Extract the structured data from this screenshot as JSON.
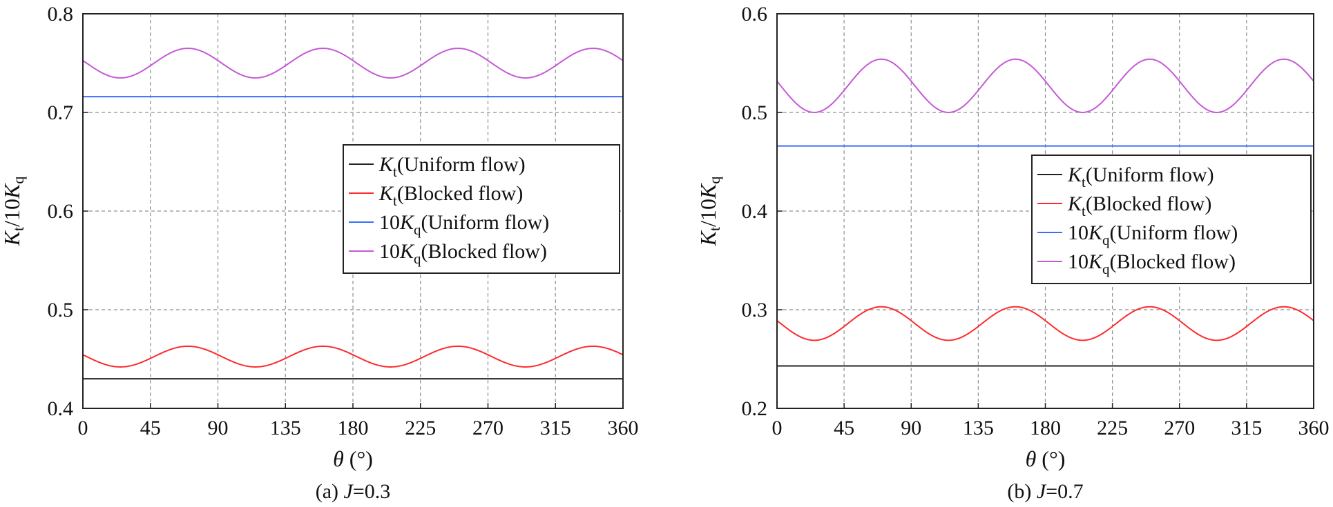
{
  "chart_data": [
    {
      "type": "line",
      "caption": "(a) J=0.3",
      "caption_prefix": "(a) ",
      "caption_var": "J",
      "caption_value": "=0.3",
      "xlabel": "θ (°)",
      "ylabel": "Kt/10Kq",
      "xlim": [
        0,
        360
      ],
      "ylim": [
        0.4,
        0.8
      ],
      "xticks": [
        0,
        45,
        90,
        135,
        180,
        225,
        270,
        315,
        360
      ],
      "yticks": [
        0.4,
        0.5,
        0.6,
        0.7,
        0.8
      ],
      "ytick_labels": [
        "0.4",
        "0.5",
        "0.6",
        "0.7",
        "0.8"
      ],
      "grid": true,
      "legend_position": "center-right",
      "series": [
        {
          "name": "Kt (Uniform flow)",
          "color": "#222222",
          "kind": "constant",
          "value": 0.43
        },
        {
          "name": "Kt (Blocked flow)",
          "color": "#ff2a2a",
          "kind": "periodic",
          "mean": 0.4525,
          "amplitude": 0.0105,
          "period": 90,
          "peak_at": 70
        },
        {
          "name": "10Kq (Uniform flow)",
          "color": "#3b6cff",
          "kind": "constant",
          "value": 0.716
        },
        {
          "name": "10Kq (Blocked flow)",
          "color": "#c55ad6",
          "kind": "periodic",
          "mean": 0.75,
          "amplitude": 0.015,
          "period": 90,
          "peak_at": 70
        }
      ]
    },
    {
      "type": "line",
      "caption": "(b) J=0.7",
      "caption_prefix": "(b) ",
      "caption_var": "J",
      "caption_value": "=0.7",
      "xlabel": "θ (°)",
      "ylabel": "Kt/10Kq",
      "xlim": [
        0,
        360
      ],
      "ylim": [
        0.2,
        0.6
      ],
      "xticks": [
        0,
        45,
        90,
        135,
        180,
        225,
        270,
        315,
        360
      ],
      "yticks": [
        0.2,
        0.3,
        0.4,
        0.5,
        0.6
      ],
      "ytick_labels": [
        "0.2",
        "0.3",
        "0.4",
        "0.5",
        "0.6"
      ],
      "grid": true,
      "legend_position": "center-right",
      "series": [
        {
          "name": "Kt (Uniform flow)",
          "color": "#222222",
          "kind": "constant",
          "value": 0.243
        },
        {
          "name": "Kt (Blocked flow)",
          "color": "#ff2a2a",
          "kind": "periodic",
          "mean": 0.286,
          "amplitude": 0.017,
          "period": 90,
          "peak_at": 70
        },
        {
          "name": "10Kq (Uniform flow)",
          "color": "#3b6cff",
          "kind": "constant",
          "value": 0.466
        },
        {
          "name": "10Kq (Blocked flow)",
          "color": "#c55ad6",
          "kind": "periodic",
          "mean": 0.527,
          "amplitude": 0.027,
          "period": 90,
          "peak_at": 70
        }
      ]
    }
  ],
  "legend_entries": [
    {
      "prefix": "",
      "var": "K",
      "sub": "t",
      "rest": "(Uniform flow)",
      "color": "#222222"
    },
    {
      "prefix": "",
      "var": "K",
      "sub": "t",
      "rest": "(Blocked flow)",
      "color": "#ff2a2a"
    },
    {
      "prefix": "10",
      "var": "K",
      "sub": "q",
      "rest": "(Uniform flow)",
      "color": "#3b6cff"
    },
    {
      "prefix": "10",
      "var": "K",
      "sub": "q",
      "rest": "(Blocked flow)",
      "color": "#c55ad6"
    }
  ]
}
